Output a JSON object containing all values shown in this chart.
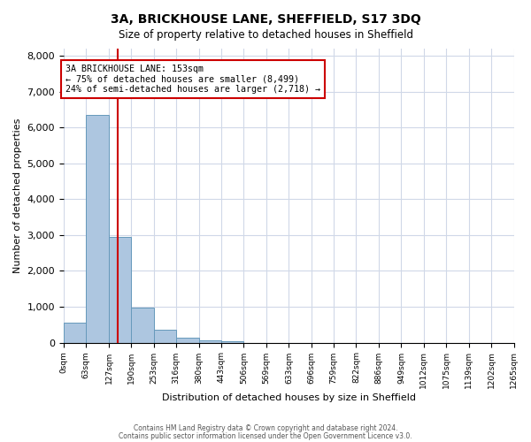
{
  "title": "3A, BRICKHOUSE LANE, SHEFFIELD, S17 3DQ",
  "subtitle": "Size of property relative to detached houses in Sheffield",
  "xlabel": "Distribution of detached houses by size in Sheffield",
  "ylabel": "Number of detached properties",
  "bar_values": [
    550,
    6350,
    2950,
    975,
    370,
    150,
    75,
    50,
    0,
    0,
    0,
    0,
    0,
    0,
    0,
    0,
    0,
    0,
    0,
    0
  ],
  "bin_labels": [
    "0sqm",
    "63sqm",
    "127sqm",
    "190sqm",
    "253sqm",
    "316sqm",
    "380sqm",
    "443sqm",
    "506sqm",
    "569sqm",
    "633sqm",
    "696sqm",
    "759sqm",
    "822sqm",
    "886sqm",
    "949sqm",
    "1012sqm",
    "1075sqm",
    "1139sqm",
    "1202sqm",
    "1265sqm"
  ],
  "bar_color": "#adc6e0",
  "bar_edge_color": "#6699bb",
  "vline_color": "#cc0000",
  "annotation_text": "3A BRICKHOUSE LANE: 153sqm\n← 75% of detached houses are smaller (8,499)\n24% of semi-detached houses are larger (2,718) →",
  "annotation_box_color": "#cc0000",
  "ylim": [
    0,
    8200
  ],
  "yticks": [
    0,
    1000,
    2000,
    3000,
    4000,
    5000,
    6000,
    7000,
    8000
  ],
  "footer_line1": "Contains HM Land Registry data © Crown copyright and database right 2024.",
  "footer_line2": "Contains public sector information licensed under the Open Government Licence v3.0.",
  "bin_edges": [
    0,
    63,
    127,
    190,
    253,
    316,
    380,
    443,
    506,
    569,
    633,
    696,
    759,
    822,
    886,
    949,
    1012,
    1075,
    1139,
    1202,
    1265
  ],
  "property_size": 153,
  "fig_bg": "#ffffff",
  "grid_color": "#d0d8e8"
}
